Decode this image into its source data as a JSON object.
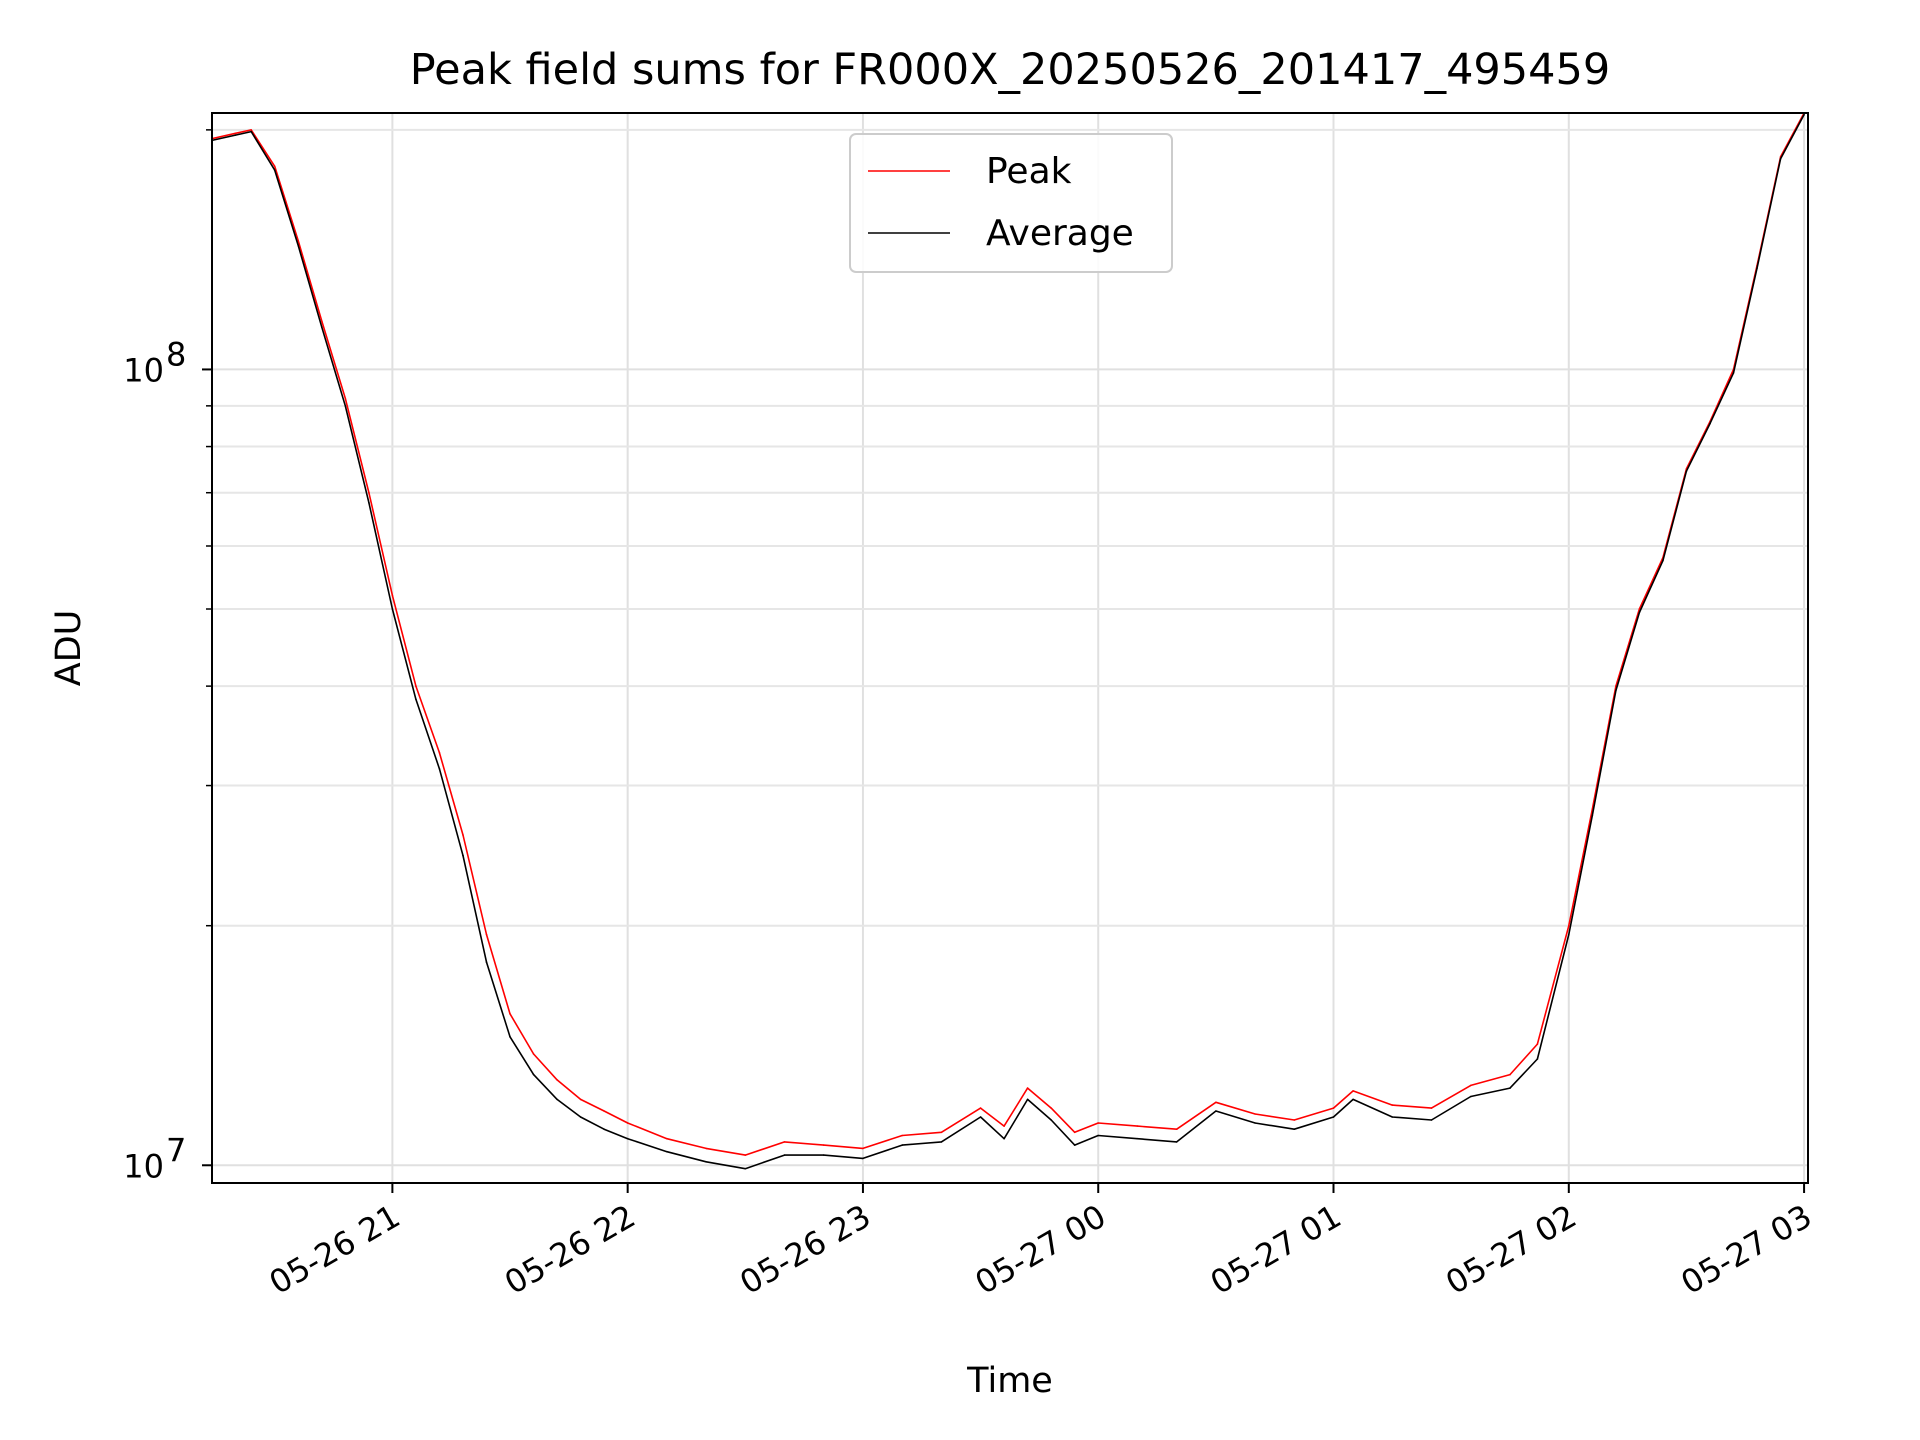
{
  "chart_data": {
    "type": "line",
    "title": "Peak field sums for FR000X_20250526_201417_495459",
    "xlabel": "Time",
    "ylabel": "ADU",
    "y_scale": "log",
    "ylim": [
      9500000,
      210000000
    ],
    "xlim": [
      "2025-05-26 20:14",
      "2025-05-27 03:01"
    ],
    "x_ticks": [
      "05-26 21",
      "05-26 22",
      "05-26 23",
      "05-27 00",
      "05-27 01",
      "05-27 02",
      "05-27 03"
    ],
    "y_ticks": [
      {
        "value": 10000000,
        "mantissa": "10",
        "exponent": "7"
      },
      {
        "value": 100000000,
        "mantissa": "10",
        "exponent": "8"
      }
    ],
    "grid": true,
    "legend_position": "top-center",
    "series": [
      {
        "name": "Peak",
        "color": "#ff0000",
        "x": [
          "2025-05-26 20:14",
          "2025-05-26 20:20",
          "2025-05-26 20:24",
          "2025-05-26 20:30",
          "2025-05-26 20:36",
          "2025-05-26 20:42",
          "2025-05-26 20:48",
          "2025-05-26 20:54",
          "2025-05-26 21:00",
          "2025-05-26 21:06",
          "2025-05-26 21:12",
          "2025-05-26 21:18",
          "2025-05-26 21:24",
          "2025-05-26 21:30",
          "2025-05-26 21:36",
          "2025-05-26 21:42",
          "2025-05-26 21:48",
          "2025-05-26 21:54",
          "2025-05-26 22:00",
          "2025-05-26 22:10",
          "2025-05-26 22:20",
          "2025-05-26 22:30",
          "2025-05-26 22:40",
          "2025-05-26 22:50",
          "2025-05-26 23:00",
          "2025-05-26 23:10",
          "2025-05-26 23:20",
          "2025-05-26 23:30",
          "2025-05-26 23:36",
          "2025-05-26 23:42",
          "2025-05-26 23:48",
          "2025-05-26 23:54",
          "2025-05-27 00:00",
          "2025-05-27 00:10",
          "2025-05-27 00:20",
          "2025-05-27 00:30",
          "2025-05-27 00:40",
          "2025-05-27 00:50",
          "2025-05-27 01:00",
          "2025-05-27 01:05",
          "2025-05-27 01:15",
          "2025-05-27 01:25",
          "2025-05-27 01:35",
          "2025-05-27 01:45",
          "2025-05-27 01:52",
          "2025-05-27 02:00",
          "2025-05-27 02:06",
          "2025-05-27 02:12",
          "2025-05-27 02:18",
          "2025-05-27 02:24",
          "2025-05-27 02:30",
          "2025-05-27 02:36",
          "2025-05-27 02:42",
          "2025-05-27 02:48",
          "2025-05-27 02:54",
          "2025-05-27 03:00"
        ],
        "values": [
          195000000,
          198000000,
          200000000,
          180000000,
          145000000,
          115000000,
          92000000,
          70000000,
          52000000,
          40000000,
          33000000,
          26000000,
          19500000,
          15500000,
          13800000,
          12800000,
          12100000,
          11700000,
          11300000,
          10800000,
          10500000,
          10300000,
          10700000,
          10600000,
          10500000,
          10900000,
          11000000,
          11800000,
          11200000,
          12500000,
          11800000,
          11000000,
          11300000,
          11200000,
          11100000,
          12000000,
          11600000,
          11400000,
          11800000,
          12400000,
          11900000,
          11800000,
          12600000,
          13000000,
          14200000,
          20000000,
          28000000,
          40000000,
          50000000,
          58000000,
          75000000,
          86000000,
          100000000,
          135000000,
          185000000,
          210000000
        ]
      },
      {
        "name": "Average",
        "color": "#000000",
        "x": [
          "2025-05-26 20:14",
          "2025-05-26 20:20",
          "2025-05-26 20:24",
          "2025-05-26 20:30",
          "2025-05-26 20:36",
          "2025-05-26 20:42",
          "2025-05-26 20:48",
          "2025-05-26 20:54",
          "2025-05-26 21:00",
          "2025-05-26 21:06",
          "2025-05-26 21:12",
          "2025-05-26 21:18",
          "2025-05-26 21:24",
          "2025-05-26 21:30",
          "2025-05-26 21:36",
          "2025-05-26 21:42",
          "2025-05-26 21:48",
          "2025-05-26 21:54",
          "2025-05-26 22:00",
          "2025-05-26 22:10",
          "2025-05-26 22:20",
          "2025-05-26 22:30",
          "2025-05-26 22:40",
          "2025-05-26 22:50",
          "2025-05-26 23:00",
          "2025-05-26 23:10",
          "2025-05-26 23:20",
          "2025-05-26 23:30",
          "2025-05-26 23:36",
          "2025-05-26 23:42",
          "2025-05-26 23:48",
          "2025-05-26 23:54",
          "2025-05-27 00:00",
          "2025-05-27 00:10",
          "2025-05-27 00:20",
          "2025-05-27 00:30",
          "2025-05-27 00:40",
          "2025-05-27 00:50",
          "2025-05-27 01:00",
          "2025-05-27 01:05",
          "2025-05-27 01:15",
          "2025-05-27 01:25",
          "2025-05-27 01:35",
          "2025-05-27 01:45",
          "2025-05-27 01:52",
          "2025-05-27 02:00",
          "2025-05-27 02:06",
          "2025-05-27 02:12",
          "2025-05-27 02:18",
          "2025-05-27 02:24",
          "2025-05-27 02:30",
          "2025-05-27 02:36",
          "2025-05-27 02:42",
          "2025-05-27 02:48",
          "2025-05-27 02:54",
          "2025-05-27 03:00"
        ],
        "values": [
          194000000,
          197000000,
          199000000,
          178000000,
          143000000,
          113000000,
          90000000,
          68000000,
          50000000,
          38500000,
          31500000,
          24500000,
          18000000,
          14500000,
          13000000,
          12100000,
          11500000,
          11100000,
          10800000,
          10400000,
          10100000,
          9900000,
          10300000,
          10300000,
          10200000,
          10600000,
          10700000,
          11500000,
          10800000,
          12100000,
          11400000,
          10600000,
          10900000,
          10800000,
          10700000,
          11700000,
          11300000,
          11100000,
          11500000,
          12100000,
          11500000,
          11400000,
          12200000,
          12500000,
          13600000,
          19500000,
          27500000,
          39500000,
          49500000,
          57500000,
          74500000,
          85500000,
          99000000,
          134000000,
          184000000,
          209000000
        ]
      }
    ]
  }
}
